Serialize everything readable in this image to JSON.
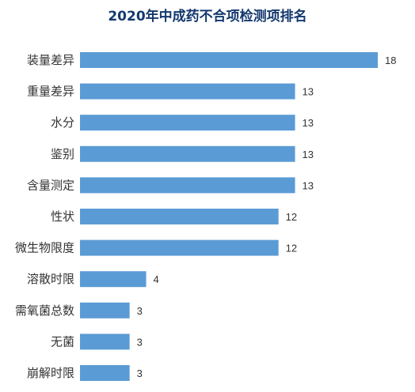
{
  "title": "2020年中成药不合项检测项排名",
  "chart_data": {
    "type": "bar",
    "orientation": "horizontal",
    "title": "2020年中成药不合项检测项排名",
    "categories": [
      "装量差异",
      "重量差异",
      "水分",
      "鉴别",
      "含量测定",
      "性状",
      "微生物限度",
      "溶散时限",
      "需氧菌总数",
      "无菌",
      "崩解时限"
    ],
    "values": [
      18,
      13,
      13,
      13,
      13,
      12,
      12,
      4,
      3,
      3,
      3
    ],
    "xlabel": "",
    "ylabel": "",
    "xlim": [
      0,
      18
    ],
    "grid": false,
    "legend": "none",
    "data_labels": true,
    "bar_color": "#5b9bd5",
    "title_color": "#14396e"
  }
}
